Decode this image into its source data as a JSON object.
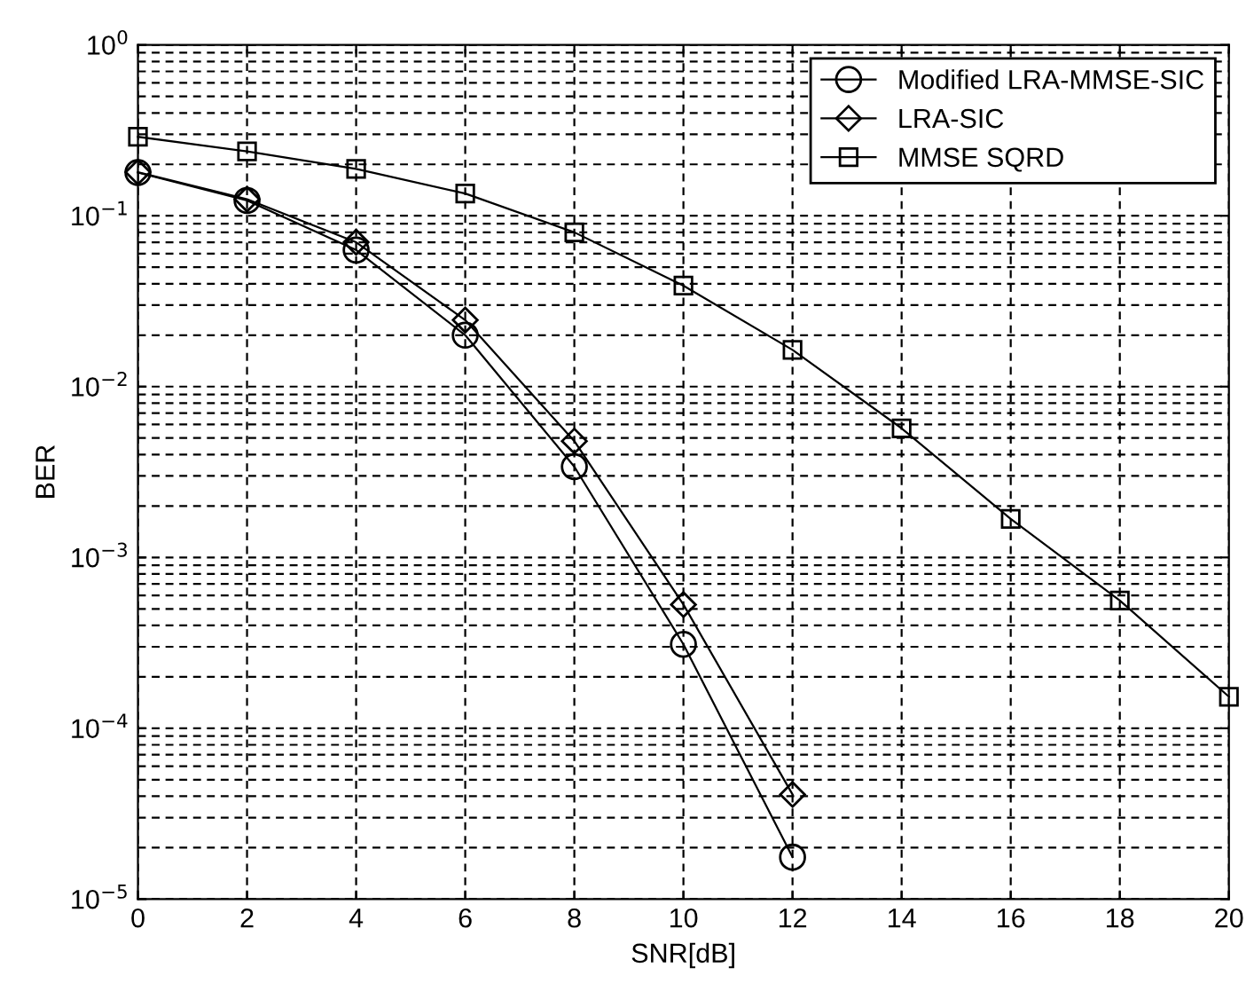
{
  "chart_data": {
    "type": "line",
    "xlabel": "SNR[dB]",
    "ylabel": "BER",
    "log": "y",
    "grid": true,
    "legend": "top right",
    "xlim": [
      0,
      20
    ],
    "xticks": [
      0,
      2,
      4,
      6,
      8,
      10,
      12,
      14,
      16,
      18,
      20
    ],
    "ylim": [
      1e-05,
      1
    ],
    "yticks": [
      {
        "value": 1,
        "label": "10$^{0}$"
      },
      {
        "value": 0.1,
        "label": "10$^{−1}$"
      },
      {
        "value": 0.01,
        "label": "10$^{−2}$"
      },
      {
        "value": 0.001,
        "label": "10$^{−3}$"
      },
      {
        "value": 0.0001,
        "label": "10$^{−4}$"
      },
      {
        "value": 1e-05,
        "label": "10$^{−5}$"
      }
    ],
    "series": [
      {
        "name": "Modified LRA-MMSE-SIC",
        "color": "#000000",
        "marker": "circle",
        "x": [
          0,
          2,
          4,
          6,
          8,
          10,
          12
        ],
        "values": [
          0.179,
          0.123,
          0.063,
          0.02,
          0.0034,
          0.00031,
          1.76e-05
        ]
      },
      {
        "name": "LRA-SIC",
        "color": "#000000",
        "marker": "diamond",
        "x": [
          0,
          2,
          4,
          6,
          8,
          10,
          12
        ],
        "values": [
          0.18,
          0.125,
          0.07,
          0.0245,
          0.0048,
          0.00053,
          4.1e-05
        ]
      },
      {
        "name": "MMSE SQRD",
        "color": "#000000",
        "marker": "square",
        "x": [
          0,
          2,
          4,
          6,
          8,
          10,
          12,
          14,
          16,
          18,
          20
        ],
        "values": [
          0.29,
          0.238,
          0.188,
          0.135,
          0.08,
          0.039,
          0.0164,
          0.0057,
          0.00168,
          0.00056,
          0.000153
        ]
      }
    ]
  }
}
